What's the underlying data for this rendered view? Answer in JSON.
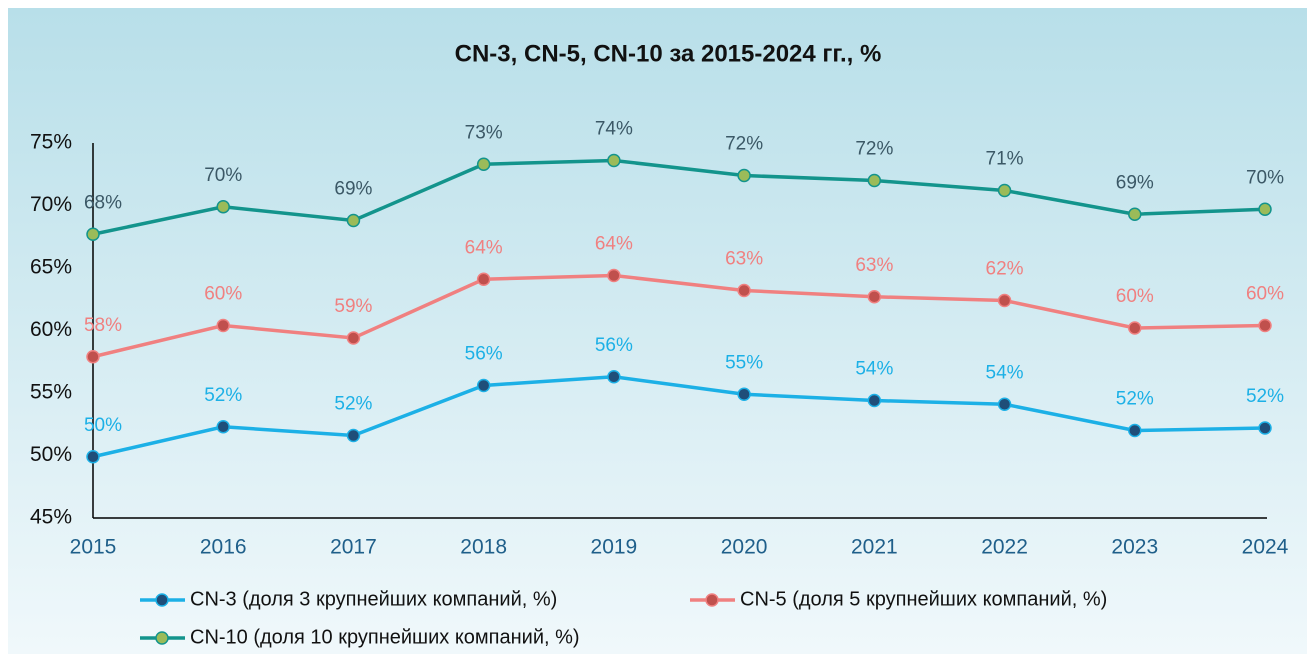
{
  "chart_data": {
    "type": "line",
    "title": "CN-3, CN-5, CN-10 за 2015-2024 гг., %",
    "categories": [
      "2015",
      "2016",
      "2017",
      "2018",
      "2019",
      "2020",
      "2021",
      "2022",
      "2023",
      "2024"
    ],
    "ylim": [
      45,
      75
    ],
    "yticks": [
      {
        "value": 45,
        "label": "45%"
      },
      {
        "value": 50,
        "label": "50%"
      },
      {
        "value": 55,
        "label": "55%"
      },
      {
        "value": 60,
        "label": "60%"
      },
      {
        "value": 65,
        "label": "65%"
      },
      {
        "value": 70,
        "label": "70%"
      },
      {
        "value": 75,
        "label": "75%"
      }
    ],
    "grid": false,
    "legend": "bottom",
    "series": [
      {
        "name": "CN-3 (доля 3 крупнейших компаний, %)",
        "color": "#1cb0e6",
        "marker_color": "#1f4e79",
        "label_color": "#1cb0e6",
        "values": [
          49.9,
          52.3,
          51.6,
          55.6,
          56.3,
          54.9,
          54.4,
          54.1,
          52.0,
          52.2
        ],
        "value_labels": [
          "50%",
          "52%",
          "52%",
          "56%",
          "56%",
          "55%",
          "54%",
          "54%",
          "52%",
          "52%"
        ]
      },
      {
        "name": "CN-5 (доля 5 крупнейших компаний, %)",
        "color": "#f08080",
        "marker_color": "#c0504d",
        "label_color": "#f08080",
        "values": [
          57.9,
          60.4,
          59.4,
          64.1,
          64.4,
          63.2,
          62.7,
          62.4,
          60.2,
          60.4
        ],
        "value_labels": [
          "58%",
          "60%",
          "59%",
          "64%",
          "64%",
          "63%",
          "63%",
          "62%",
          "60%",
          "60%"
        ]
      },
      {
        "name": "CN-10 (доля 10 крупнейших компаний, %)",
        "color": "#13948c",
        "marker_color": "#9bbb59",
        "label_color": "#3b5866",
        "values": [
          67.7,
          69.9,
          68.8,
          73.3,
          73.6,
          72.4,
          72.0,
          71.2,
          69.3,
          69.7
        ],
        "value_labels": [
          "68%",
          "70%",
          "69%",
          "73%",
          "74%",
          "72%",
          "72%",
          "71%",
          "69%",
          "70%"
        ]
      }
    ]
  }
}
